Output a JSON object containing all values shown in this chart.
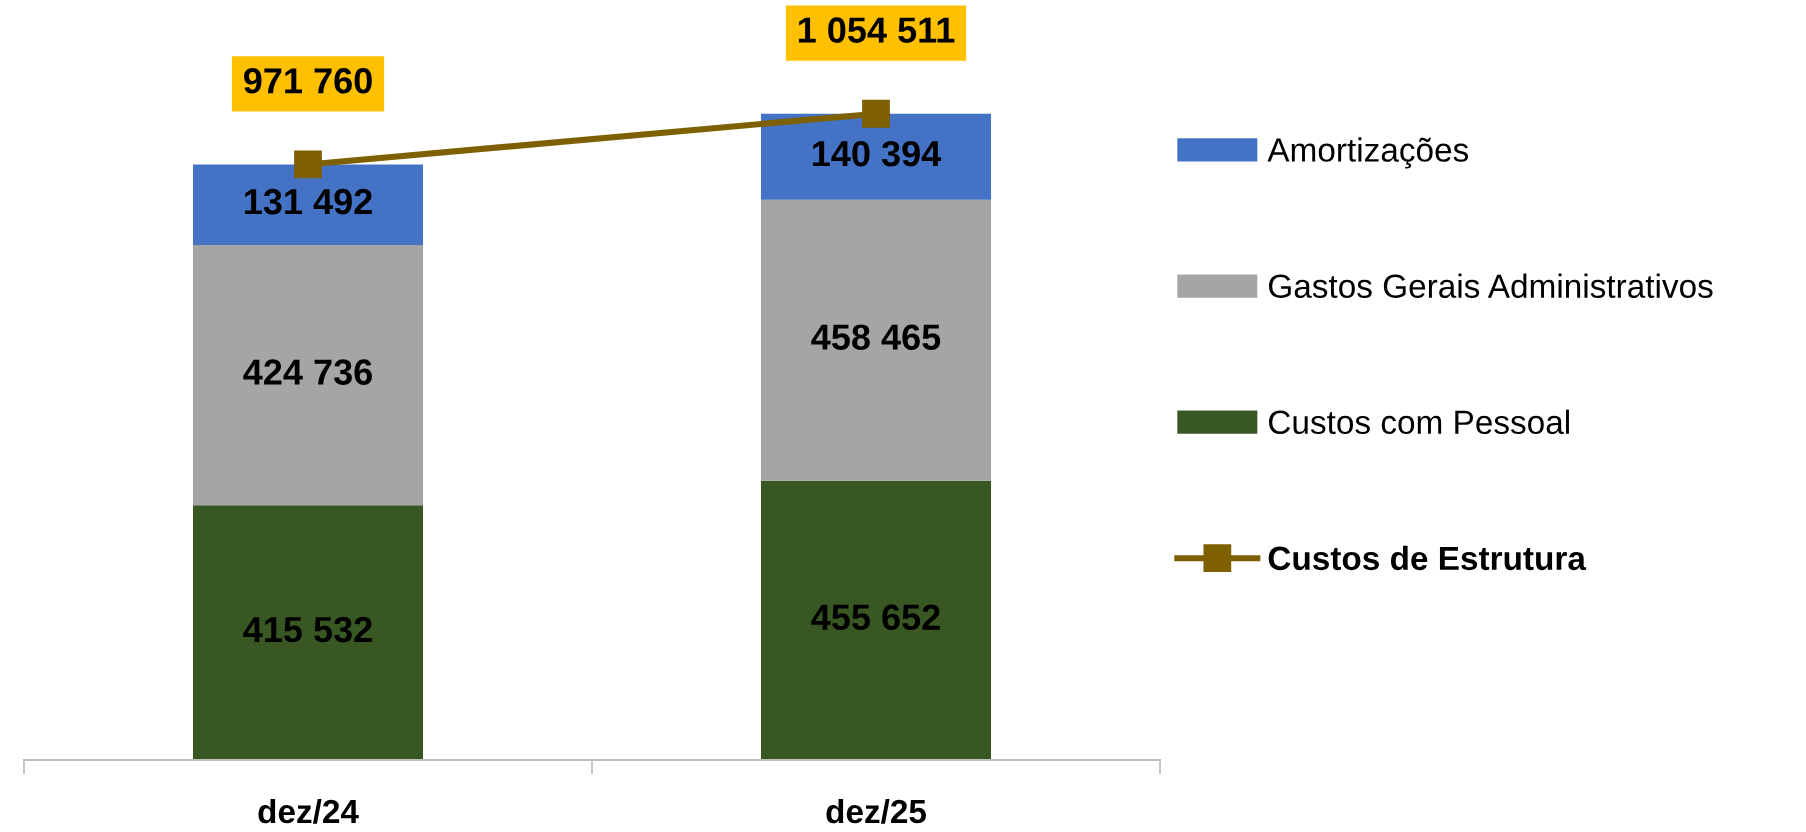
{
  "chart_data": {
    "type": "bar",
    "stacked": true,
    "legend": "right",
    "categories": [
      "dez/24",
      "dez/25"
    ],
    "series": [
      {
        "name": "Custos com Pessoal",
        "color": "#385723",
        "values": [
          415532,
          455652
        ],
        "value_labels": [
          "415 532",
          "455 652"
        ]
      },
      {
        "name": "Gastos Gerais Administrativos",
        "color": "#a5a5a5",
        "values": [
          424736,
          458465
        ],
        "value_labels": [
          "424 736",
          "458 465"
        ]
      },
      {
        "name": "Amortizações",
        "color": "#4472c4",
        "values": [
          131492,
          140394
        ],
        "value_labels": [
          "131 492",
          "140 394"
        ]
      },
      {
        "name": "Custos de Estrutura",
        "type": "line",
        "color": "#7f6000",
        "marker": "square",
        "line_style": "solid",
        "values": [
          971760,
          1054511
        ],
        "value_labels": [
          "971 760",
          "1 054 511"
        ]
      }
    ]
  }
}
